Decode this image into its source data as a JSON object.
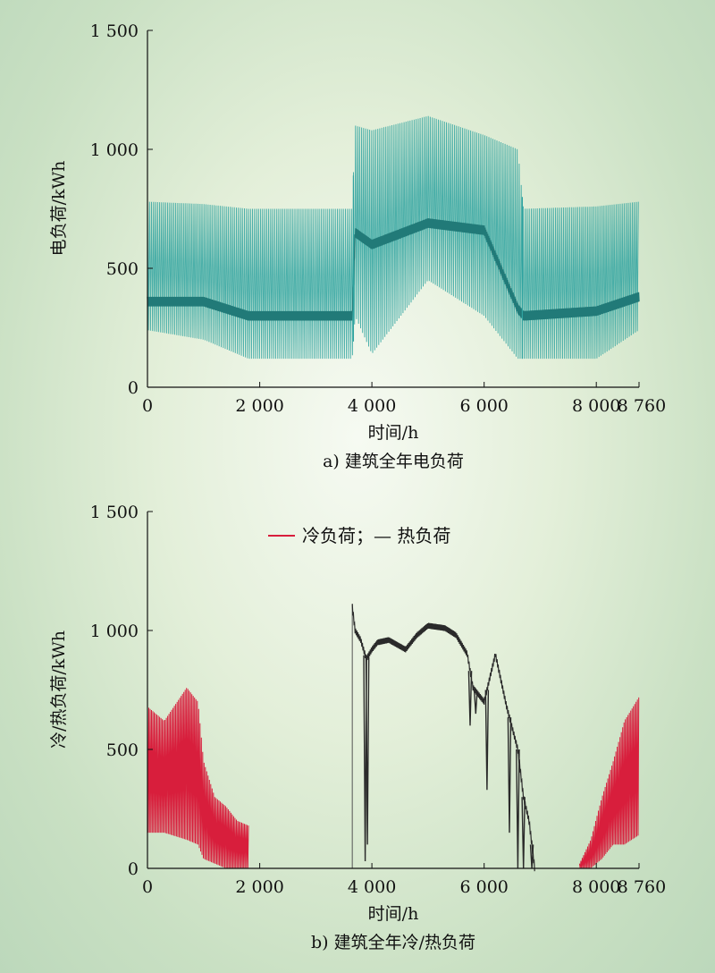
{
  "chart_data": [
    {
      "type": "line",
      "caption": "a) 建筑全年电负荷",
      "xlabel": "时间/h",
      "ylabel": "电负荷/kWh",
      "xlim": [
        0,
        8760
      ],
      "ylim": [
        0,
        1500
      ],
      "xticks": [
        {
          "value": 0,
          "label": "0"
        },
        {
          "value": 2000,
          "label": "2 000"
        },
        {
          "value": 4000,
          "label": "4 000"
        },
        {
          "value": 6000,
          "label": "6 000"
        },
        {
          "value": 8000,
          "label": "8 000"
        },
        {
          "value": 8760,
          "label": "8 760"
        }
      ],
      "yticks": [
        {
          "value": 0,
          "label": "0"
        },
        {
          "value": 500,
          "label": "500"
        },
        {
          "value": 1000,
          "label": "1 000"
        },
        {
          "value": 1500,
          "label": "1 500"
        }
      ],
      "series": [
        {
          "color": "#2fa3a0",
          "x": [
            0,
            1000,
            1800,
            3000,
            3650,
            3700,
            4000,
            5000,
            6000,
            6600,
            6700,
            8000,
            8760
          ],
          "max": [
            780,
            770,
            750,
            750,
            750,
            1100,
            1080,
            1140,
            1060,
            1000,
            750,
            760,
            780
          ],
          "min": [
            240,
            200,
            120,
            120,
            120,
            300,
            140,
            450,
            300,
            120,
            120,
            120,
            240
          ],
          "mean": [
            360,
            360,
            300,
            300,
            300,
            650,
            600,
            690,
            660,
            330,
            300,
            320,
            380
          ]
        }
      ]
    },
    {
      "type": "line",
      "caption": "b) 建筑全年冷/热负荷",
      "xlabel": "时间/h",
      "ylabel": "冷/热负荷/kWh",
      "xlim": [
        0,
        8760
      ],
      "ylim": [
        0,
        1500
      ],
      "legend_position": "top-center",
      "xticks": [
        {
          "value": 0,
          "label": "0"
        },
        {
          "value": 2000,
          "label": "2 000"
        },
        {
          "value": 4000,
          "label": "4 000"
        },
        {
          "value": 6000,
          "label": "6 000"
        },
        {
          "value": 8000,
          "label": "8 000"
        },
        {
          "value": 8760,
          "label": "8 760"
        }
      ],
      "yticks": [
        {
          "value": 0,
          "label": "0"
        },
        {
          "value": 500,
          "label": "500"
        },
        {
          "value": 1000,
          "label": "1 000"
        },
        {
          "value": 1500,
          "label": "1 500"
        }
      ],
      "legend_label": "冷负荷；— 热负荷",
      "series": [
        {
          "color": "#d81e3c",
          "segments": [
            {
              "x": [
                0,
                300,
                700,
                900,
                1000,
                1200,
                1400,
                1600,
                1800
              ],
              "max": [
                680,
                620,
                760,
                700,
                450,
                300,
                260,
                200,
                180
              ],
              "min": [
                150,
                150,
                120,
                100,
                40,
                20,
                0,
                0,
                0
              ]
            },
            {
              "x": [
                7700,
                7900,
                8100,
                8300,
                8500,
                8760
              ],
              "max": [
                20,
                120,
                300,
                450,
                620,
                720
              ],
              "min": [
                0,
                0,
                40,
                100,
                100,
                140
              ]
            }
          ]
        },
        {
          "color": "#2a2a2a",
          "x": [
            3650,
            3700,
            3800,
            3850,
            3900,
            4000,
            4100,
            4300,
            4600,
            4800,
            5000,
            5300,
            5500,
            5700,
            5800,
            6000,
            6200,
            6400,
            6600,
            6700,
            6800,
            6900
          ],
          "max": [
            1110,
            1000,
            960,
            920,
            880,
            930,
            960,
            970,
            980,
            1000,
            1020,
            1010,
            1000,
            980,
            960,
            960,
            900,
            880,
            880,
            860,
            820,
            820
          ],
          "main": [
            1100,
            1000,
            960,
            920,
            880,
            920,
            950,
            960,
            920,
            980,
            1020,
            1010,
            980,
            900,
            760,
            700,
            900,
            680,
            500,
            300,
            200,
            0
          ],
          "dips": [
            {
              "x": 3880,
              "v": 30
            },
            {
              "x": 3920,
              "v": 100
            },
            {
              "x": 5750,
              "v": 600
            },
            {
              "x": 5850,
              "v": 650
            },
            {
              "x": 6050,
              "v": 330
            },
            {
              "x": 6450,
              "v": 150
            },
            {
              "x": 6600,
              "v": 0
            },
            {
              "x": 6700,
              "v": 0
            },
            {
              "x": 6850,
              "v": 0
            }
          ]
        }
      ]
    }
  ]
}
